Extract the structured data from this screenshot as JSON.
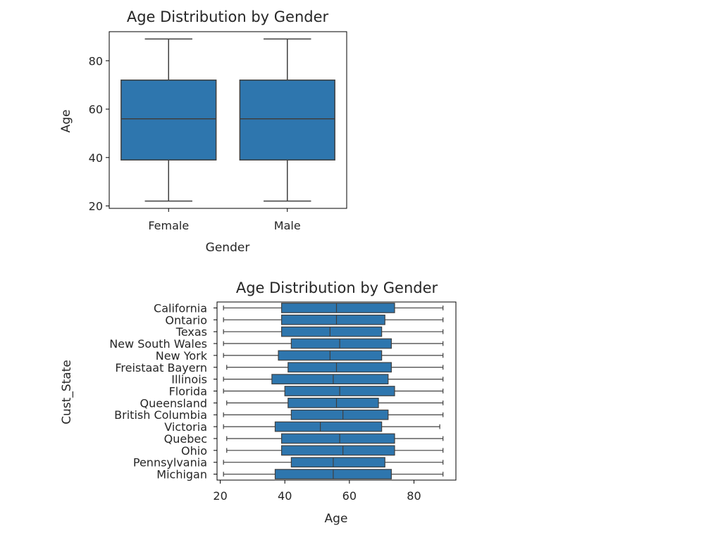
{
  "chart_data": [
    {
      "type": "boxplot",
      "orientation": "vertical",
      "title": "Age Distribution by Gender",
      "xlabel": "Gender",
      "ylabel": "Age",
      "ylim": [
        19,
        92
      ],
      "yticks": [
        20,
        40,
        60,
        80
      ],
      "categories": [
        "Female",
        "Male"
      ],
      "boxes": [
        {
          "category": "Female",
          "min": 22,
          "q1": 39,
          "median": 56,
          "q3": 72,
          "max": 89
        },
        {
          "category": "Male",
          "min": 22,
          "q1": 39,
          "median": 56,
          "q3": 72,
          "max": 89
        }
      ],
      "box_color": "#2e76ae",
      "grid": false
    },
    {
      "type": "boxplot",
      "orientation": "horizontal",
      "title": "Age Distribution by Gender",
      "xlabel": "Age",
      "ylabel": "Cust_State",
      "xlim": [
        19,
        93
      ],
      "xticks": [
        20,
        40,
        60,
        80
      ],
      "categories": [
        "California",
        "Ontario",
        "Texas",
        "New South Wales",
        "New York",
        "Freistaat Bayern",
        "Illinois",
        "Florida",
        "Queensland",
        "British Columbia",
        "Victoria",
        "Quebec",
        "Ohio",
        "Pennsylvania",
        "Michigan"
      ],
      "boxes": [
        {
          "category": "California",
          "min": 21,
          "q1": 39,
          "median": 56,
          "q3": 74,
          "max": 89
        },
        {
          "category": "Ontario",
          "min": 21,
          "q1": 39,
          "median": 56,
          "q3": 71,
          "max": 89
        },
        {
          "category": "Texas",
          "min": 21,
          "q1": 39,
          "median": 54,
          "q3": 70,
          "max": 89
        },
        {
          "category": "New South Wales",
          "min": 21,
          "q1": 42,
          "median": 57,
          "q3": 73,
          "max": 89
        },
        {
          "category": "New York",
          "min": 21,
          "q1": 38,
          "median": 54,
          "q3": 70,
          "max": 89
        },
        {
          "category": "Freistaat Bayern",
          "min": 22,
          "q1": 41,
          "median": 56,
          "q3": 73,
          "max": 89
        },
        {
          "category": "Illinois",
          "min": 21,
          "q1": 36,
          "median": 55,
          "q3": 72,
          "max": 89
        },
        {
          "category": "Florida",
          "min": 21,
          "q1": 40,
          "median": 57,
          "q3": 74,
          "max": 89
        },
        {
          "category": "Queensland",
          "min": 22,
          "q1": 41,
          "median": 56,
          "q3": 69,
          "max": 89
        },
        {
          "category": "British Columbia",
          "min": 21,
          "q1": 42,
          "median": 58,
          "q3": 72,
          "max": 89
        },
        {
          "category": "Victoria",
          "min": 21,
          "q1": 37,
          "median": 51,
          "q3": 70,
          "max": 88
        },
        {
          "category": "Quebec",
          "min": 22,
          "q1": 39,
          "median": 57,
          "q3": 74,
          "max": 89
        },
        {
          "category": "Ohio",
          "min": 22,
          "q1": 39,
          "median": 58,
          "q3": 74,
          "max": 89
        },
        {
          "category": "Pennsylvania",
          "min": 21,
          "q1": 42,
          "median": 55,
          "q3": 71,
          "max": 89
        },
        {
          "category": "Michigan",
          "min": 21,
          "q1": 37,
          "median": 55,
          "q3": 73,
          "max": 89
        }
      ],
      "box_color": "#2e76ae",
      "grid": false
    }
  ]
}
